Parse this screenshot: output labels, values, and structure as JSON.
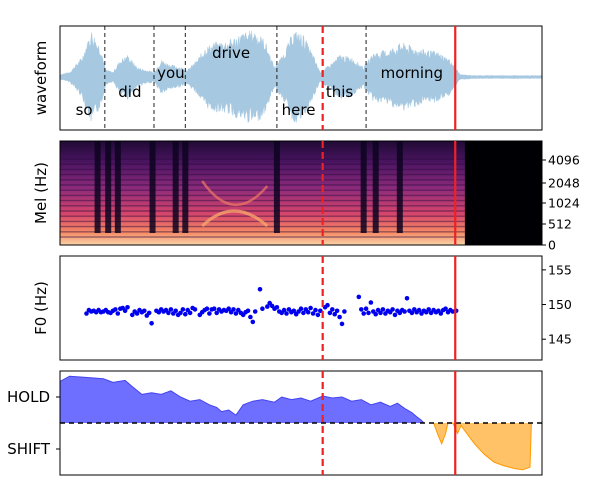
{
  "chart_data": {
    "type": "multi-panel",
    "x_range": [
      0,
      10
    ],
    "event_markers": [
      {
        "x": 5.45,
        "color": "#ee2222",
        "style": "dashed"
      },
      {
        "x": 8.2,
        "color": "#ee2222",
        "style": "solid"
      }
    ],
    "waveform": {
      "ylabel": "waveform",
      "word_boundaries": [
        0.93,
        1.95,
        2.6,
        4.5,
        6.35
      ],
      "words": [
        {
          "text": "so",
          "x": 0.5,
          "level": "low"
        },
        {
          "text": "did",
          "x": 1.45,
          "level": "mid"
        },
        {
          "text": "you",
          "x": 2.3,
          "level": "high"
        },
        {
          "text": "drive",
          "x": 3.55,
          "level": "top"
        },
        {
          "text": "here",
          "x": 4.95,
          "level": "low"
        },
        {
          "text": "this",
          "x": 5.8,
          "level": "mid"
        },
        {
          "text": "morning",
          "x": 7.3,
          "level": "high"
        }
      ],
      "envelope": [
        [
          0,
          0.05
        ],
        [
          0.2,
          0.1
        ],
        [
          0.45,
          0.4
        ],
        [
          0.65,
          0.95
        ],
        [
          0.85,
          0.6
        ],
        [
          0.95,
          0.15
        ],
        [
          1.1,
          0.1
        ],
        [
          1.25,
          0.35
        ],
        [
          1.4,
          0.45
        ],
        [
          1.6,
          0.2
        ],
        [
          1.75,
          0.15
        ],
        [
          1.95,
          0.1
        ],
        [
          2.1,
          0.35
        ],
        [
          2.3,
          0.25
        ],
        [
          2.5,
          0.2
        ],
        [
          2.65,
          0.15
        ],
        [
          2.85,
          0.35
        ],
        [
          3.0,
          0.6
        ],
        [
          3.2,
          0.7
        ],
        [
          3.5,
          0.75
        ],
        [
          3.8,
          0.9
        ],
        [
          4.05,
          0.95
        ],
        [
          4.25,
          0.75
        ],
        [
          4.45,
          0.2
        ],
        [
          4.65,
          0.5
        ],
        [
          4.85,
          0.95
        ],
        [
          5.05,
          0.85
        ],
        [
          5.25,
          0.45
        ],
        [
          5.4,
          0.1
        ],
        [
          5.6,
          0.25
        ],
        [
          5.8,
          0.45
        ],
        [
          6.05,
          0.4
        ],
        [
          6.3,
          0.2
        ],
        [
          6.5,
          0.5
        ],
        [
          6.8,
          0.55
        ],
        [
          7.1,
          0.7
        ],
        [
          7.35,
          0.6
        ],
        [
          7.6,
          0.55
        ],
        [
          7.85,
          0.5
        ],
        [
          8.1,
          0.35
        ],
        [
          8.3,
          0.05
        ],
        [
          8.6,
          0.03
        ],
        [
          10,
          0.03
        ]
      ]
    },
    "mel": {
      "ylabel": "Mel (Hz)",
      "ytick_labels": [
        "4096",
        "2048",
        "1024",
        "512",
        "0"
      ],
      "end_x": 8.4
    },
    "f0": {
      "ylabel": "F0 (Hz)",
      "ylim": [
        142,
        157
      ],
      "ytick_labels": [
        "155",
        "150",
        "145"
      ],
      "ytick_values": [
        155,
        150,
        145
      ],
      "points": [
        [
          0.55,
          148.7
        ],
        [
          0.6,
          149.2
        ],
        [
          0.65,
          149.0
        ],
        [
          0.7,
          149.1
        ],
        [
          0.75,
          148.9
        ],
        [
          0.8,
          149.2
        ],
        [
          0.85,
          148.9
        ],
        [
          0.9,
          149.0
        ],
        [
          0.95,
          149.2
        ],
        [
          1.0,
          148.9
        ],
        [
          1.05,
          148.8
        ],
        [
          1.1,
          149.1
        ],
        [
          1.15,
          149.3
        ],
        [
          1.2,
          148.7
        ],
        [
          1.25,
          149.4
        ],
        [
          1.3,
          149.5
        ],
        [
          1.35,
          149.1
        ],
        [
          1.4,
          149.6
        ],
        [
          1.5,
          148.5
        ],
        [
          1.55,
          149.0
        ],
        [
          1.6,
          148.7
        ],
        [
          1.65,
          149.2
        ],
        [
          1.7,
          148.9
        ],
        [
          1.75,
          149.1
        ],
        [
          1.8,
          148.4
        ],
        [
          1.85,
          148.8
        ],
        [
          1.9,
          147.3
        ],
        [
          2.0,
          149.1
        ],
        [
          2.05,
          148.9
        ],
        [
          2.1,
          149.3
        ],
        [
          2.15,
          149.0
        ],
        [
          2.2,
          149.2
        ],
        [
          2.25,
          148.8
        ],
        [
          2.3,
          149.3
        ],
        [
          2.35,
          148.7
        ],
        [
          2.4,
          149.1
        ],
        [
          2.45,
          148.5
        ],
        [
          2.5,
          148.8
        ],
        [
          2.55,
          149.3
        ],
        [
          2.6,
          148.6
        ],
        [
          2.65,
          149.2
        ],
        [
          2.7,
          148.8
        ],
        [
          2.75,
          149.5
        ],
        [
          2.8,
          149.3
        ],
        [
          2.9,
          148.5
        ],
        [
          2.95,
          148.9
        ],
        [
          3.0,
          149.2
        ],
        [
          3.05,
          149.4
        ],
        [
          3.1,
          148.7
        ],
        [
          3.15,
          149.3
        ],
        [
          3.2,
          149.4
        ],
        [
          3.25,
          148.8
        ],
        [
          3.3,
          149.3
        ],
        [
          3.35,
          149.0
        ],
        [
          3.4,
          149.2
        ],
        [
          3.45,
          149.1
        ],
        [
          3.5,
          149.4
        ],
        [
          3.55,
          148.9
        ],
        [
          3.6,
          149.3
        ],
        [
          3.65,
          148.7
        ],
        [
          3.7,
          149.2
        ],
        [
          3.75,
          148.8
        ],
        [
          3.8,
          148.5
        ],
        [
          3.85,
          148.9
        ],
        [
          3.9,
          149.1
        ],
        [
          3.95,
          148.2
        ],
        [
          4.0,
          147.5
        ],
        [
          4.05,
          149.0
        ],
        [
          4.15,
          152.2
        ],
        [
          4.2,
          149.4
        ],
        [
          4.3,
          149.7
        ],
        [
          4.35,
          150.2
        ],
        [
          4.4,
          149.8
        ],
        [
          4.45,
          149.4
        ],
        [
          4.5,
          149.6
        ],
        [
          4.55,
          149.0
        ],
        [
          4.6,
          148.8
        ],
        [
          4.65,
          149.2
        ],
        [
          4.7,
          148.7
        ],
        [
          4.75,
          149.3
        ],
        [
          4.8,
          148.9
        ],
        [
          4.85,
          149.1
        ],
        [
          4.9,
          148.6
        ],
        [
          4.95,
          149.0
        ],
        [
          5.0,
          149.4
        ],
        [
          5.05,
          148.8
        ],
        [
          5.1,
          149.3
        ],
        [
          5.15,
          148.9
        ],
        [
          5.2,
          149.5
        ],
        [
          5.25,
          148.7
        ],
        [
          5.3,
          149.2
        ],
        [
          5.35,
          148.5
        ],
        [
          5.4,
          149.1
        ],
        [
          5.5,
          149.6
        ],
        [
          5.55,
          149.9
        ],
        [
          5.6,
          148.8
        ],
        [
          5.65,
          149.3
        ],
        [
          5.7,
          148.6
        ],
        [
          5.75,
          149.1
        ],
        [
          5.8,
          148.2
        ],
        [
          5.85,
          147.2
        ],
        [
          5.9,
          149.0
        ],
        [
          6.2,
          151.1
        ],
        [
          6.25,
          149.3
        ],
        [
          6.3,
          148.7
        ],
        [
          6.35,
          149.4
        ],
        [
          6.4,
          148.8
        ],
        [
          6.45,
          150.3
        ],
        [
          6.5,
          149.0
        ],
        [
          6.55,
          148.6
        ],
        [
          6.6,
          149.2
        ],
        [
          6.65,
          148.8
        ],
        [
          6.7,
          149.3
        ],
        [
          6.75,
          148.7
        ],
        [
          6.8,
          149.1
        ],
        [
          6.85,
          148.9
        ],
        [
          6.9,
          149.3
        ],
        [
          6.95,
          148.5
        ],
        [
          7.0,
          149.1
        ],
        [
          7.05,
          148.8
        ],
        [
          7.1,
          149.2
        ],
        [
          7.15,
          149.0
        ],
        [
          7.2,
          150.9
        ],
        [
          7.25,
          149.1
        ],
        [
          7.3,
          148.8
        ],
        [
          7.35,
          149.3
        ],
        [
          7.4,
          148.9
        ],
        [
          7.45,
          149.2
        ],
        [
          7.5,
          148.7
        ],
        [
          7.55,
          149.1
        ],
        [
          7.6,
          148.9
        ],
        [
          7.65,
          149.3
        ],
        [
          7.7,
          148.8
        ],
        [
          7.75,
          149.2
        ],
        [
          7.8,
          148.9
        ],
        [
          7.85,
          149.1
        ],
        [
          7.9,
          148.7
        ],
        [
          7.95,
          149.2
        ],
        [
          8.0,
          149.4
        ],
        [
          8.05,
          148.9
        ],
        [
          8.1,
          149.2
        ],
        [
          8.15,
          149.0
        ],
        [
          8.22,
          149.1
        ]
      ]
    },
    "turn": {
      "ytick_labels": [
        "HOLD",
        "SHIFT"
      ],
      "ylim": [
        -1,
        1
      ],
      "threshold": 0,
      "hold_curve": [
        [
          0,
          0.8
        ],
        [
          0.2,
          0.9
        ],
        [
          0.5,
          0.88
        ],
        [
          0.9,
          0.85
        ],
        [
          1.1,
          0.78
        ],
        [
          1.35,
          0.82
        ],
        [
          1.5,
          0.7
        ],
        [
          1.7,
          0.55
        ],
        [
          1.9,
          0.58
        ],
        [
          2.1,
          0.55
        ],
        [
          2.3,
          0.62
        ],
        [
          2.5,
          0.5
        ],
        [
          2.7,
          0.42
        ],
        [
          2.9,
          0.45
        ],
        [
          3.1,
          0.35
        ],
        [
          3.25,
          0.3
        ],
        [
          3.35,
          0.22
        ],
        [
          3.5,
          0.25
        ],
        [
          3.65,
          0.15
        ],
        [
          3.8,
          0.35
        ],
        [
          4.0,
          0.42
        ],
        [
          4.2,
          0.45
        ],
        [
          4.45,
          0.4
        ],
        [
          4.6,
          0.5
        ],
        [
          4.8,
          0.45
        ],
        [
          5.0,
          0.48
        ],
        [
          5.2,
          0.42
        ],
        [
          5.45,
          0.52
        ],
        [
          5.65,
          0.48
        ],
        [
          5.85,
          0.5
        ],
        [
          6.05,
          0.42
        ],
        [
          6.25,
          0.45
        ],
        [
          6.45,
          0.35
        ],
        [
          6.65,
          0.4
        ],
        [
          6.85,
          0.32
        ],
        [
          7.0,
          0.38
        ],
        [
          7.15,
          0.28
        ],
        [
          7.3,
          0.2
        ],
        [
          7.4,
          0.12
        ],
        [
          7.5,
          0.05
        ],
        [
          7.55,
          0.0
        ]
      ],
      "shift_curve": [
        [
          7.75,
          0.0
        ],
        [
          7.85,
          -0.25
        ],
        [
          7.92,
          -0.4
        ],
        [
          8.0,
          -0.2
        ],
        [
          8.05,
          0.0
        ],
        [
          8.15,
          0.0
        ],
        [
          8.25,
          -0.2
        ],
        [
          8.32,
          -0.05
        ],
        [
          8.4,
          -0.15
        ],
        [
          8.6,
          -0.4
        ],
        [
          8.8,
          -0.6
        ],
        [
          9.0,
          -0.75
        ],
        [
          9.2,
          -0.82
        ],
        [
          9.45,
          -0.88
        ],
        [
          9.6,
          -0.9
        ],
        [
          9.75,
          -0.85
        ],
        [
          9.78,
          0.0
        ]
      ]
    }
  },
  "colors": {
    "waveform": "#a6c8e0",
    "boundary": "#222222",
    "f0_point": "#0000ee",
    "hold_fill": "#6666ff",
    "hold_line": "#4444ee",
    "shift_fill": "#ffc266",
    "shift_line": "#ff9900",
    "marker": "#ee2222"
  }
}
